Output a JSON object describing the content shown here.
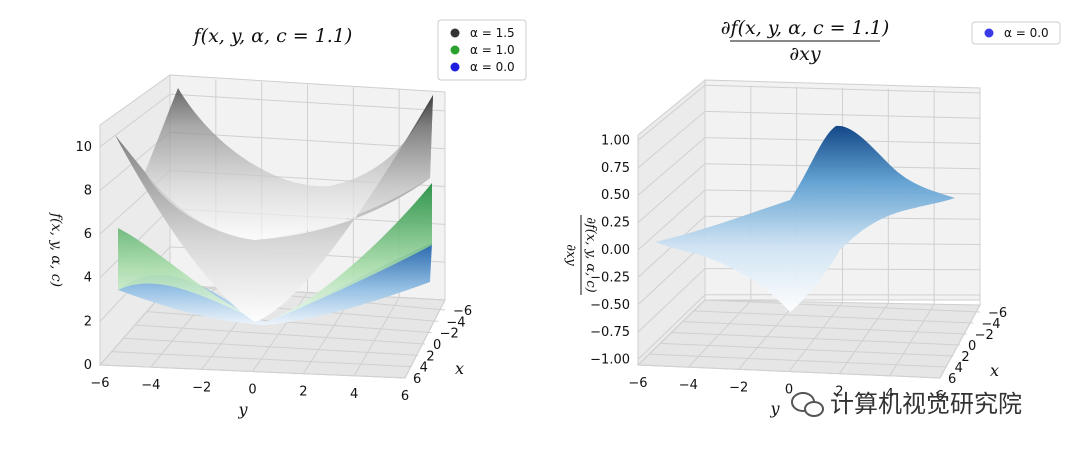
{
  "chart_data": [
    {
      "type": "surface3d",
      "title": "f(x, y, α, c = 1.1)",
      "xlabel": "x",
      "ylabel": "y",
      "zlabel": "f(x, y, α, c)",
      "x_ticks": [
        "−6",
        "−4",
        "−2",
        "0",
        "2",
        "4",
        "6"
      ],
      "y_ticks": [
        "−6",
        "−4",
        "−2",
        "0",
        "2",
        "4",
        "6"
      ],
      "z_ticks": [
        "0",
        "2",
        "4",
        "6",
        "8",
        "10"
      ],
      "zlim": [
        0,
        11
      ],
      "legend": [
        {
          "label": "α = 1.5",
          "color": "#333333"
        },
        {
          "label": "α = 1.0",
          "color": "#2ca02c"
        },
        {
          "label": "α = 0.0",
          "color": "#1f1fe0"
        }
      ],
      "series": [
        {
          "name": "α = 1.5",
          "colormap": "gray",
          "z_corner": 10.8
        },
        {
          "name": "α = 1.0",
          "colormap": "green",
          "z_corner": 7.5
        },
        {
          "name": "α = 0.0",
          "colormap": "blue",
          "z_corner": 4.3
        }
      ]
    },
    {
      "type": "surface3d",
      "title_numerator": "∂f(x, y, α, c = 1.1)",
      "title_denominator": "∂xy",
      "xlabel": "x",
      "ylabel": "y",
      "zlabel_numerator": "∂f(x, y, α, c)",
      "zlabel_denominator": "∂xy",
      "x_ticks": [
        "−6",
        "−4",
        "−2",
        "0",
        "2",
        "4",
        "6"
      ],
      "y_ticks": [
        "−6",
        "−4",
        "−2",
        "0",
        "2",
        "4",
        "6"
      ],
      "z_ticks": [
        "−1.00",
        "−0.75",
        "−0.50",
        "−0.25",
        "0.00",
        "0.25",
        "0.50",
        "0.75",
        "1.00"
      ],
      "zlim": [
        -1.05,
        1.05
      ],
      "legend": [
        {
          "label": "α = 0.0",
          "color": "#3a3ae6"
        }
      ],
      "series": [
        {
          "name": "α = 0.0",
          "colormap": "blues",
          "z_peak": 1.0,
          "z_min": -1.0
        }
      ]
    }
  ],
  "watermark": "计算机视觉研究院"
}
